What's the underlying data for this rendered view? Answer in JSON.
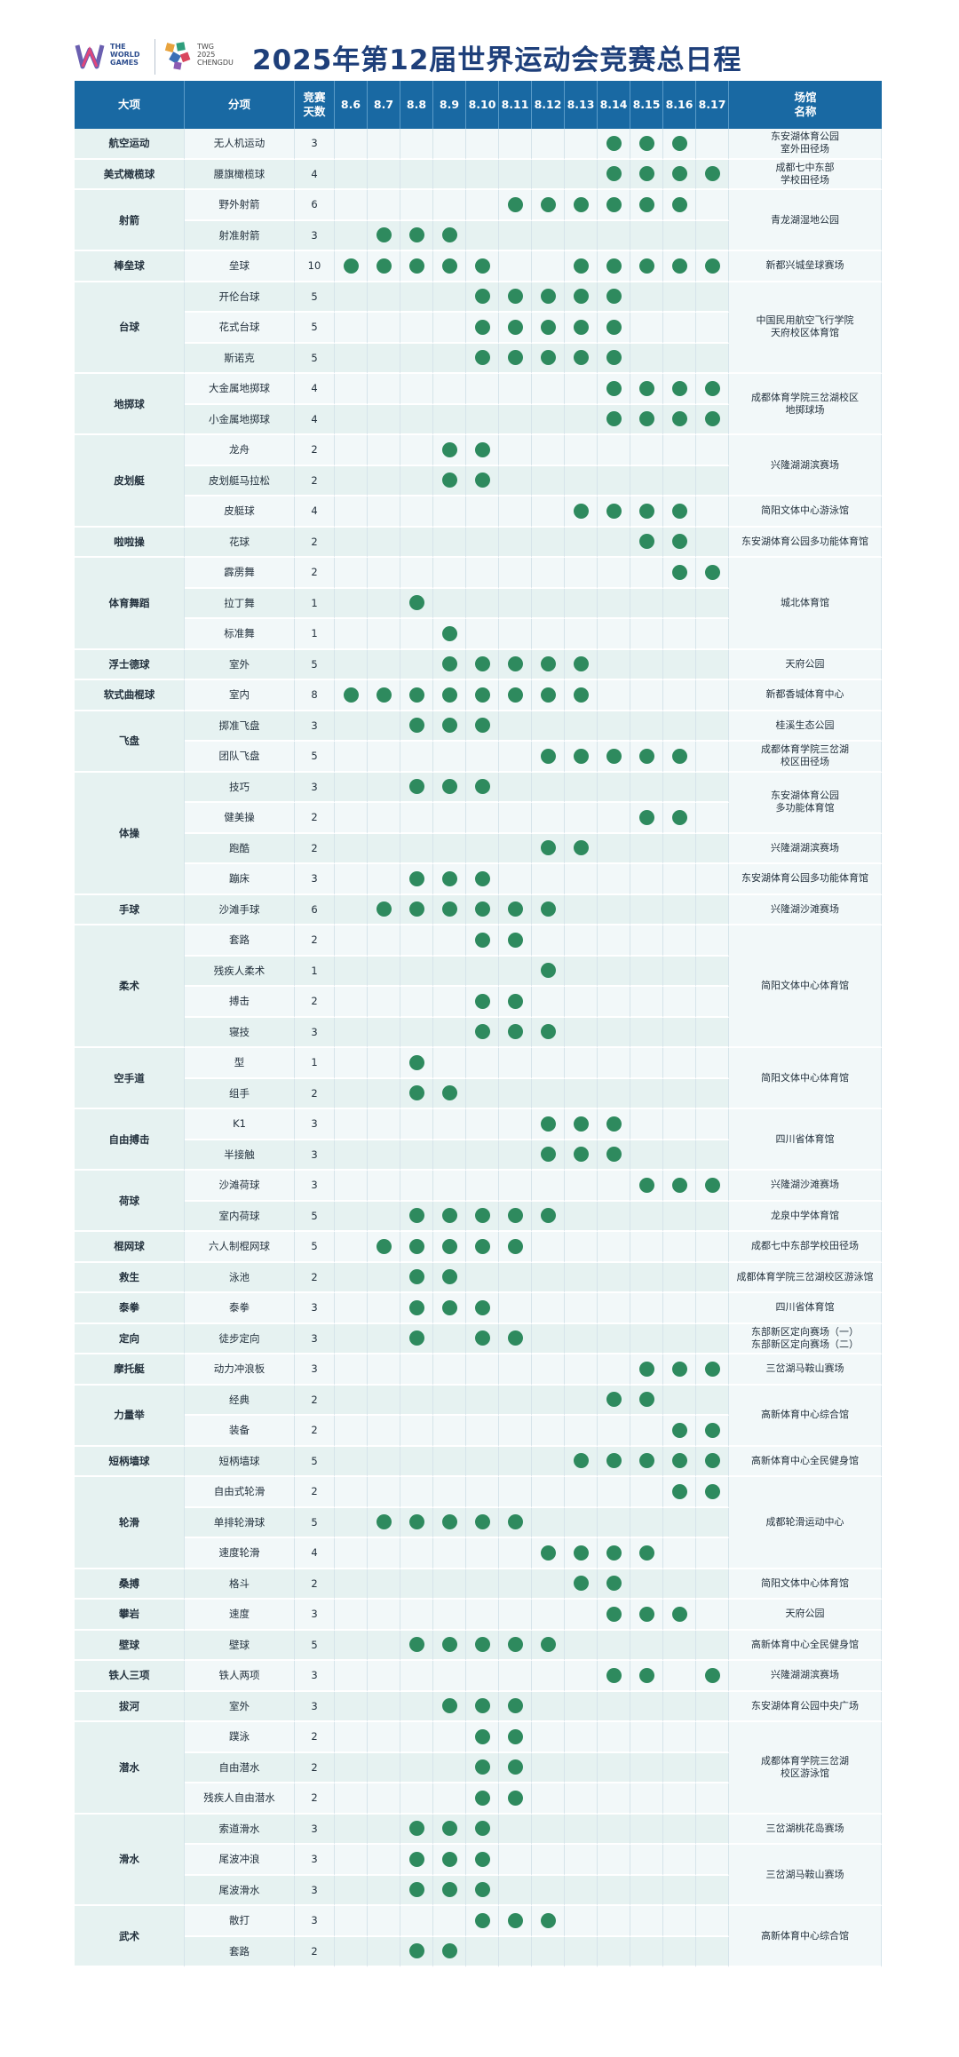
{
  "header": {
    "logo_left_text": "THE\nWORLD\nGAMES",
    "logo_right_text": "TWG\n2025\nCHENGDU",
    "title": "2025年第12届世界运动会竞赛总日程"
  },
  "colors": {
    "header_bg": "#1969a3",
    "dot": "#2e8a5e",
    "title": "#1e3f7a"
  },
  "columns": {
    "category": "大项",
    "sub": "分项",
    "days": "竞赛\n天数",
    "dates": [
      "8.6",
      "8.7",
      "8.8",
      "8.9",
      "8.10",
      "8.11",
      "8.12",
      "8.13",
      "8.14",
      "8.15",
      "8.16",
      "8.17"
    ],
    "venue": "场馆\n名称"
  },
  "rows": [
    {
      "cat": "航空运动",
      "cs": 1,
      "sub": "无人机运动",
      "days": "3",
      "d": [
        0,
        0,
        0,
        0,
        0,
        0,
        0,
        0,
        1,
        1,
        1,
        0
      ],
      "venue": "东安湖体育公园\n室外田径场",
      "vs": 1
    },
    {
      "cat": "美式橄榄球",
      "cs": 1,
      "sub": "腰旗橄榄球",
      "days": "4",
      "d": [
        0,
        0,
        0,
        0,
        0,
        0,
        0,
        0,
        1,
        1,
        1,
        1
      ],
      "venue": "成都七中东部\n学校田径场",
      "vs": 1
    },
    {
      "cat": "射箭",
      "cs": 2,
      "sub": "野外射箭",
      "days": "6",
      "d": [
        0,
        0,
        0,
        0,
        0,
        1,
        1,
        1,
        1,
        1,
        1,
        0
      ],
      "venue": "青龙湖湿地公园",
      "vs": 2
    },
    {
      "sub": "射准射箭",
      "days": "3",
      "d": [
        0,
        1,
        1,
        1,
        0,
        0,
        0,
        0,
        0,
        0,
        0,
        0
      ]
    },
    {
      "cat": "棒垒球",
      "cs": 1,
      "sub": "垒球",
      "days": "10",
      "d": [
        1,
        1,
        1,
        1,
        1,
        0,
        0,
        1,
        1,
        1,
        1,
        1
      ],
      "venue": "新都兴城垒球赛场",
      "vs": 1
    },
    {
      "cat": "台球",
      "cs": 3,
      "sub": "开伦台球",
      "days": "5",
      "d": [
        0,
        0,
        0,
        0,
        1,
        1,
        1,
        1,
        1,
        0,
        0,
        0
      ],
      "venue": "中国民用航空飞行学院\n天府校区体育馆",
      "vs": 3
    },
    {
      "sub": "花式台球",
      "days": "5",
      "d": [
        0,
        0,
        0,
        0,
        1,
        1,
        1,
        1,
        1,
        0,
        0,
        0
      ]
    },
    {
      "sub": "斯诺克",
      "days": "5",
      "d": [
        0,
        0,
        0,
        0,
        1,
        1,
        1,
        1,
        1,
        0,
        0,
        0
      ]
    },
    {
      "cat": "地掷球",
      "cs": 2,
      "sub": "大金属地掷球",
      "days": "4",
      "d": [
        0,
        0,
        0,
        0,
        0,
        0,
        0,
        0,
        1,
        1,
        1,
        1
      ],
      "venue": "成都体育学院三岔湖校区\n地掷球场",
      "vs": 2
    },
    {
      "sub": "小金属地掷球",
      "days": "4",
      "d": [
        0,
        0,
        0,
        0,
        0,
        0,
        0,
        0,
        1,
        1,
        1,
        1
      ]
    },
    {
      "cat": "皮划艇",
      "cs": 3,
      "sub": "龙舟",
      "days": "2",
      "d": [
        0,
        0,
        0,
        1,
        1,
        0,
        0,
        0,
        0,
        0,
        0,
        0
      ],
      "venue": "兴隆湖湖滨赛场",
      "vs": 2
    },
    {
      "sub": "皮划艇马拉松",
      "days": "2",
      "d": [
        0,
        0,
        0,
        1,
        1,
        0,
        0,
        0,
        0,
        0,
        0,
        0
      ]
    },
    {
      "sub": "皮艇球",
      "days": "4",
      "d": [
        0,
        0,
        0,
        0,
        0,
        0,
        0,
        1,
        1,
        1,
        1,
        0
      ],
      "venue": "简阳文体中心游泳馆",
      "vs": 1
    },
    {
      "cat": "啦啦操",
      "cs": 1,
      "sub": "花球",
      "days": "2",
      "d": [
        0,
        0,
        0,
        0,
        0,
        0,
        0,
        0,
        0,
        1,
        1,
        0
      ],
      "venue": "东安湖体育公园多功能体育馆",
      "vs": 1
    },
    {
      "cat": "体育舞蹈",
      "cs": 3,
      "sub": "霹雳舞",
      "days": "2",
      "d": [
        0,
        0,
        0,
        0,
        0,
        0,
        0,
        0,
        0,
        0,
        1,
        1
      ],
      "venue": "城北体育馆",
      "vs": 3
    },
    {
      "sub": "拉丁舞",
      "days": "1",
      "d": [
        0,
        0,
        1,
        0,
        0,
        0,
        0,
        0,
        0,
        0,
        0,
        0
      ]
    },
    {
      "sub": "标准舞",
      "days": "1",
      "d": [
        0,
        0,
        0,
        1,
        0,
        0,
        0,
        0,
        0,
        0,
        0,
        0
      ]
    },
    {
      "cat": "浮士德球",
      "cs": 1,
      "sub": "室外",
      "days": "5",
      "d": [
        0,
        0,
        0,
        1,
        1,
        1,
        1,
        1,
        0,
        0,
        0,
        0
      ],
      "venue": "天府公园",
      "vs": 1
    },
    {
      "cat": "软式曲棍球",
      "cs": 1,
      "sub": "室内",
      "days": "8",
      "d": [
        1,
        1,
        1,
        1,
        1,
        1,
        1,
        1,
        0,
        0,
        0,
        0
      ],
      "venue": "新都香城体育中心",
      "vs": 1
    },
    {
      "cat": "飞盘",
      "cs": 2,
      "sub": "掷准飞盘",
      "days": "3",
      "d": [
        0,
        0,
        1,
        1,
        1,
        0,
        0,
        0,
        0,
        0,
        0,
        0
      ],
      "venue": "桂溪生态公园",
      "vs": 1
    },
    {
      "sub": "团队飞盘",
      "days": "5",
      "d": [
        0,
        0,
        0,
        0,
        0,
        0,
        1,
        1,
        1,
        1,
        1,
        0
      ],
      "venue": "成都体育学院三岔湖\n校区田径场",
      "vs": 1
    },
    {
      "cat": "体操",
      "cs": 4,
      "sub": "技巧",
      "days": "3",
      "d": [
        0,
        0,
        1,
        1,
        1,
        0,
        0,
        0,
        0,
        0,
        0,
        0
      ],
      "venue": "东安湖体育公园\n多功能体育馆",
      "vs": 2
    },
    {
      "sub": "健美操",
      "days": "2",
      "d": [
        0,
        0,
        0,
        0,
        0,
        0,
        0,
        0,
        0,
        1,
        1,
        0
      ]
    },
    {
      "sub": "跑酷",
      "days": "2",
      "d": [
        0,
        0,
        0,
        0,
        0,
        0,
        1,
        1,
        0,
        0,
        0,
        0
      ],
      "venue": "兴隆湖湖滨赛场",
      "vs": 1
    },
    {
      "sub": "蹦床",
      "days": "3",
      "d": [
        0,
        0,
        1,
        1,
        1,
        0,
        0,
        0,
        0,
        0,
        0,
        0
      ],
      "venue": "东安湖体育公园多功能体育馆",
      "vs": 1
    },
    {
      "cat": "手球",
      "cs": 1,
      "sub": "沙滩手球",
      "days": "6",
      "d": [
        0,
        1,
        1,
        1,
        1,
        1,
        1,
        0,
        0,
        0,
        0,
        0
      ],
      "venue": "兴隆湖沙滩赛场",
      "vs": 1
    },
    {
      "cat": "柔术",
      "cs": 4,
      "sub": "套路",
      "days": "2",
      "d": [
        0,
        0,
        0,
        0,
        1,
        1,
        0,
        0,
        0,
        0,
        0,
        0
      ],
      "venue": "简阳文体中心体育馆",
      "vs": 4
    },
    {
      "sub": "残疾人柔术",
      "days": "1",
      "d": [
        0,
        0,
        0,
        0,
        0,
        0,
        1,
        0,
        0,
        0,
        0,
        0
      ]
    },
    {
      "sub": "搏击",
      "days": "2",
      "d": [
        0,
        0,
        0,
        0,
        1,
        1,
        0,
        0,
        0,
        0,
        0,
        0
      ]
    },
    {
      "sub": "寝技",
      "days": "3",
      "d": [
        0,
        0,
        0,
        0,
        1,
        1,
        1,
        0,
        0,
        0,
        0,
        0
      ]
    },
    {
      "cat": "空手道",
      "cs": 2,
      "sub": "型",
      "days": "1",
      "d": [
        0,
        0,
        1,
        0,
        0,
        0,
        0,
        0,
        0,
        0,
        0,
        0
      ],
      "venue": "简阳文体中心体育馆",
      "vs": 2
    },
    {
      "sub": "组手",
      "days": "2",
      "d": [
        0,
        0,
        1,
        1,
        0,
        0,
        0,
        0,
        0,
        0,
        0,
        0
      ]
    },
    {
      "cat": "自由搏击",
      "cs": 2,
      "sub": "K1",
      "days": "3",
      "d": [
        0,
        0,
        0,
        0,
        0,
        0,
        1,
        1,
        1,
        0,
        0,
        0
      ],
      "venue": "四川省体育馆",
      "vs": 2
    },
    {
      "sub": "半接触",
      "days": "3",
      "d": [
        0,
        0,
        0,
        0,
        0,
        0,
        1,
        1,
        1,
        0,
        0,
        0
      ]
    },
    {
      "cat": "荷球",
      "cs": 2,
      "sub": "沙滩荷球",
      "days": "3",
      "d": [
        0,
        0,
        0,
        0,
        0,
        0,
        0,
        0,
        0,
        1,
        1,
        1
      ],
      "venue": "兴隆湖沙滩赛场",
      "vs": 1
    },
    {
      "sub": "室内荷球",
      "days": "5",
      "d": [
        0,
        0,
        1,
        1,
        1,
        1,
        1,
        0,
        0,
        0,
        0,
        0
      ],
      "venue": "龙泉中学体育馆",
      "vs": 1
    },
    {
      "cat": "棍网球",
      "cs": 1,
      "sub": "六人制棍网球",
      "days": "5",
      "d": [
        0,
        1,
        1,
        1,
        1,
        1,
        0,
        0,
        0,
        0,
        0,
        0
      ],
      "venue": "成都七中东部学校田径场",
      "vs": 1
    },
    {
      "cat": "救生",
      "cs": 1,
      "sub": "泳池",
      "days": "2",
      "d": [
        0,
        0,
        1,
        1,
        0,
        0,
        0,
        0,
        0,
        0,
        0,
        0
      ],
      "venue": "成都体育学院三岔湖校区游泳馆",
      "vs": 1
    },
    {
      "cat": "泰拳",
      "cs": 1,
      "sub": "泰拳",
      "days": "3",
      "d": [
        0,
        0,
        1,
        1,
        1,
        0,
        0,
        0,
        0,
        0,
        0,
        0
      ],
      "venue": "四川省体育馆",
      "vs": 1
    },
    {
      "cat": "定向",
      "cs": 1,
      "sub": "徒步定向",
      "days": "3",
      "d": [
        0,
        0,
        1,
        0,
        1,
        1,
        0,
        0,
        0,
        0,
        0,
        0
      ],
      "venue": "东部新区定向赛场（一）\n东部新区定向赛场（二）",
      "vs": 1
    },
    {
      "cat": "摩托艇",
      "cs": 1,
      "sub": "动力冲浪板",
      "days": "3",
      "d": [
        0,
        0,
        0,
        0,
        0,
        0,
        0,
        0,
        0,
        1,
        1,
        1
      ],
      "venue": "三岔湖马鞍山赛场",
      "vs": 1
    },
    {
      "cat": "力量举",
      "cs": 2,
      "sub": "经典",
      "days": "2",
      "d": [
        0,
        0,
        0,
        0,
        0,
        0,
        0,
        0,
        1,
        1,
        0,
        0
      ],
      "venue": "高新体育中心综合馆",
      "vs": 2
    },
    {
      "sub": "装备",
      "days": "2",
      "d": [
        0,
        0,
        0,
        0,
        0,
        0,
        0,
        0,
        0,
        0,
        1,
        1
      ]
    },
    {
      "cat": "短柄墙球",
      "cs": 1,
      "sub": "短柄墙球",
      "days": "5",
      "d": [
        0,
        0,
        0,
        0,
        0,
        0,
        0,
        1,
        1,
        1,
        1,
        1
      ],
      "venue": "高新体育中心全民健身馆",
      "vs": 1
    },
    {
      "cat": "轮滑",
      "cs": 3,
      "sub": "自由式轮滑",
      "days": "2",
      "d": [
        0,
        0,
        0,
        0,
        0,
        0,
        0,
        0,
        0,
        0,
        1,
        1
      ],
      "venue": "成都轮滑运动中心",
      "vs": 3
    },
    {
      "sub": "单排轮滑球",
      "days": "5",
      "d": [
        0,
        1,
        1,
        1,
        1,
        1,
        0,
        0,
        0,
        0,
        0,
        0
      ]
    },
    {
      "sub": "速度轮滑",
      "days": "4",
      "d": [
        0,
        0,
        0,
        0,
        0,
        0,
        1,
        1,
        1,
        1,
        0,
        0
      ]
    },
    {
      "cat": "桑搏",
      "cs": 1,
      "sub": "格斗",
      "days": "2",
      "d": [
        0,
        0,
        0,
        0,
        0,
        0,
        0,
        1,
        1,
        0,
        0,
        0
      ],
      "venue": "简阳文体中心体育馆",
      "vs": 1
    },
    {
      "cat": "攀岩",
      "cs": 1,
      "sub": "速度",
      "days": "3",
      "d": [
        0,
        0,
        0,
        0,
        0,
        0,
        0,
        0,
        1,
        1,
        1,
        0
      ],
      "venue": "天府公园",
      "vs": 1
    },
    {
      "cat": "壁球",
      "cs": 1,
      "sub": "壁球",
      "days": "5",
      "d": [
        0,
        0,
        1,
        1,
        1,
        1,
        1,
        0,
        0,
        0,
        0,
        0
      ],
      "venue": "高新体育中心全民健身馆",
      "vs": 1
    },
    {
      "cat": "铁人三项",
      "cs": 1,
      "sub": "铁人两项",
      "days": "3",
      "d": [
        0,
        0,
        0,
        0,
        0,
        0,
        0,
        0,
        1,
        1,
        0,
        1
      ],
      "venue": "兴隆湖湖滨赛场",
      "vs": 1
    },
    {
      "cat": "拔河",
      "cs": 1,
      "sub": "室外",
      "days": "3",
      "d": [
        0,
        0,
        0,
        1,
        1,
        1,
        0,
        0,
        0,
        0,
        0,
        0
      ],
      "venue": "东安湖体育公园中央广场",
      "vs": 1
    },
    {
      "cat": "潜水",
      "cs": 3,
      "sub": "蹼泳",
      "days": "2",
      "d": [
        0,
        0,
        0,
        0,
        1,
        1,
        0,
        0,
        0,
        0,
        0,
        0
      ],
      "venue": "成都体育学院三岔湖\n校区游泳馆",
      "vs": 3
    },
    {
      "sub": "自由潜水",
      "days": "2",
      "d": [
        0,
        0,
        0,
        0,
        1,
        1,
        0,
        0,
        0,
        0,
        0,
        0
      ]
    },
    {
      "sub": "残疾人自由潜水",
      "days": "2",
      "d": [
        0,
        0,
        0,
        0,
        1,
        1,
        0,
        0,
        0,
        0,
        0,
        0
      ]
    },
    {
      "cat": "滑水",
      "cs": 3,
      "sub": "索道滑水",
      "days": "3",
      "d": [
        0,
        0,
        1,
        1,
        1,
        0,
        0,
        0,
        0,
        0,
        0,
        0
      ],
      "venue": "三岔湖桃花岛赛场",
      "vs": 1
    },
    {
      "sub": "尾波冲浪",
      "days": "3",
      "d": [
        0,
        0,
        1,
        1,
        1,
        0,
        0,
        0,
        0,
        0,
        0,
        0
      ],
      "venue": "三岔湖马鞍山赛场",
      "vs": 2
    },
    {
      "sub": "尾波滑水",
      "days": "3",
      "d": [
        0,
        0,
        1,
        1,
        1,
        0,
        0,
        0,
        0,
        0,
        0,
        0
      ]
    },
    {
      "cat": "武术",
      "cs": 2,
      "sub": "散打",
      "days": "3",
      "d": [
        0,
        0,
        0,
        0,
        1,
        1,
        1,
        0,
        0,
        0,
        0,
        0
      ],
      "venue": "高新体育中心综合馆",
      "vs": 2
    },
    {
      "sub": "套路",
      "days": "2",
      "d": [
        0,
        0,
        1,
        1,
        0,
        0,
        0,
        0,
        0,
        0,
        0,
        0
      ]
    }
  ]
}
